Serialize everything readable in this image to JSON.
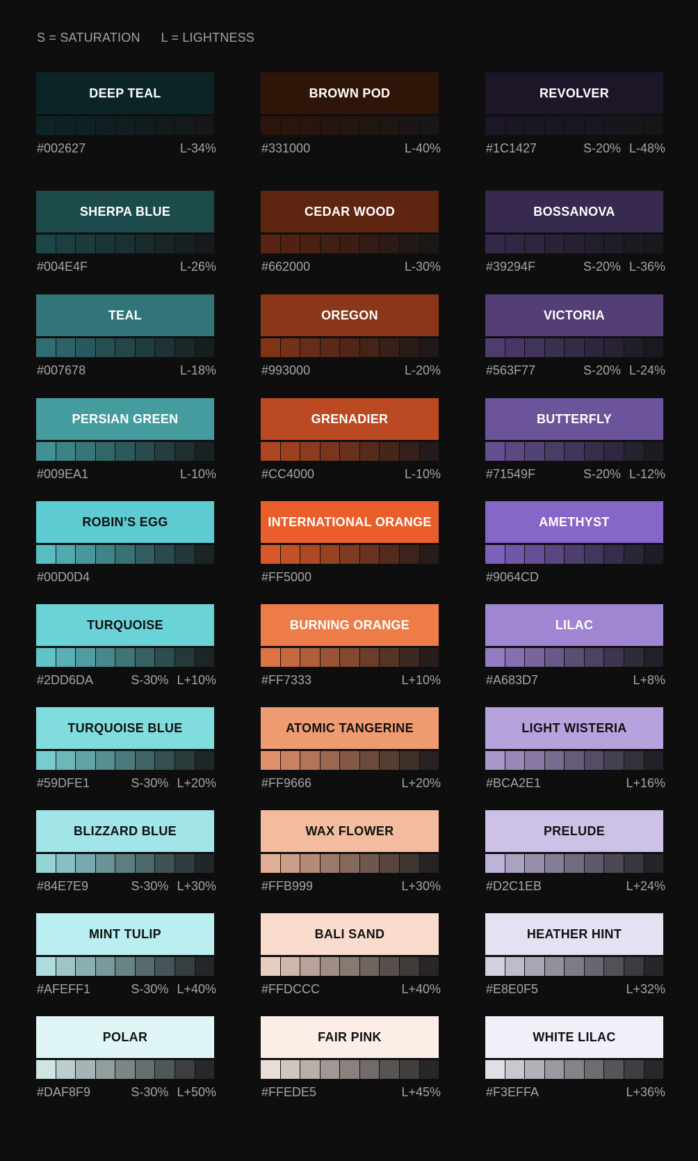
{
  "legend": {
    "saturation": "S = SATURATION",
    "lightness": "L = LIGHTNESS"
  },
  "columns": [
    {
      "swatches": [
        {
          "name": "DEEP TEAL",
          "hex": "#002627",
          "sat": "",
          "light": "L-34%",
          "color": "#0b2527",
          "text_color": "#ffffff"
        },
        {
          "name": "SHERPA BLUE",
          "hex": "#004E4F",
          "sat": "",
          "light": "L-26%",
          "color": "#1d4a4b",
          "text_color": "#ffffff"
        },
        {
          "name": "TEAL",
          "hex": "#007678",
          "sat": "",
          "light": "L-18%",
          "color": "#31757a",
          "text_color": "#ffffff"
        },
        {
          "name": "PERSIAN GREEN",
          "hex": "#009EA1",
          "sat": "",
          "light": "L-10%",
          "color": "#459c9e",
          "text_color": "#ffffff"
        },
        {
          "name": "ROBIN’S EGG",
          "hex": "#00D0D4",
          "sat": "",
          "light": "",
          "color": "#5dcbd1",
          "text_color": "#111111"
        },
        {
          "name": "TURQUOISE",
          "hex": "#2DD6DA",
          "sat": "S-30%",
          "light": "L+10%",
          "color": "#69d3d7",
          "text_color": "#111111"
        },
        {
          "name": "TURQUOISE BLUE",
          "hex": "#59DFE1",
          "sat": "S-30%",
          "light": "L+20%",
          "color": "#81dcdd",
          "text_color": "#111111"
        },
        {
          "name": "BLIZZARD BLUE",
          "hex": "#84E7E9",
          "sat": "S-30%",
          "light": "L+30%",
          "color": "#a1e5e8",
          "text_color": "#111111"
        },
        {
          "name": "MINT TULIP",
          "hex": "#AFEFF1",
          "sat": "S-30%",
          "light": "L+40%",
          "color": "#bbeef0",
          "text_color": "#111111"
        },
        {
          "name": "POLAR",
          "hex": "#DAF8F9",
          "sat": "S-30%",
          "light": "L+50%",
          "color": "#e0f6f6",
          "text_color": "#111111"
        }
      ]
    },
    {
      "swatches": [
        {
          "name": "BROWN POD",
          "hex": "#331000",
          "sat": "",
          "light": "L-40%",
          "color": "#2f1508",
          "text_color": "#ffffff"
        },
        {
          "name": "CEDAR WOOD",
          "hex": "#662000",
          "sat": "",
          "light": "L-30%",
          "color": "#5e2510",
          "text_color": "#ffffff"
        },
        {
          "name": "OREGON",
          "hex": "#993000",
          "sat": "",
          "light": "L-20%",
          "color": "#8a3618",
          "text_color": "#ffffff"
        },
        {
          "name": "GRENADIER",
          "hex": "#CC4000",
          "sat": "",
          "light": "L-10%",
          "color": "#bb4a22",
          "text_color": "#ffffff"
        },
        {
          "name": "INTERNATIONAL ORANGE",
          "hex": "#FF5000",
          "sat": "",
          "light": "",
          "color": "#ea5e2b",
          "text_color": "#ffffff"
        },
        {
          "name": "BURNING ORANGE",
          "hex": "#FF7333",
          "sat": "",
          "light": "L+10%",
          "color": "#ed7c48",
          "text_color": "#ffffff"
        },
        {
          "name": "ATOMIC TANGERINE",
          "hex": "#FF9666",
          "sat": "",
          "light": "L+20%",
          "color": "#f09c73",
          "text_color": "#111111"
        },
        {
          "name": "WAX FLOWER",
          "hex": "#FFB999",
          "sat": "",
          "light": "L+30%",
          "color": "#f3bc9f",
          "text_color": "#111111"
        },
        {
          "name": "BALI SAND",
          "hex": "#FFDCCC",
          "sat": "",
          "light": "L+40%",
          "color": "#f9dccd",
          "text_color": "#111111"
        },
        {
          "name": "FAIR PINK",
          "hex": "#FFEDE5",
          "sat": "",
          "light": "L+45%",
          "color": "#fcede6",
          "text_color": "#111111"
        }
      ]
    },
    {
      "swatches": [
        {
          "name": "REVOLVER",
          "hex": "#1C1427",
          "sat": "S-20%",
          "light": "L-48%",
          "color": "#1c1628",
          "text_color": "#ffffff"
        },
        {
          "name": "BOSSANOVA",
          "hex": "#39294F",
          "sat": "S-20%",
          "light": "L-36%",
          "color": "#372a4e",
          "text_color": "#ffffff"
        },
        {
          "name": "VICTORIA",
          "hex": "#563F77",
          "sat": "S-20%",
          "light": "L-24%",
          "color": "#533f75",
          "text_color": "#ffffff"
        },
        {
          "name": "BUTTERFLY",
          "hex": "#71549F",
          "sat": "S-20%",
          "light": "L-12%",
          "color": "#6c549b",
          "text_color": "#ffffff"
        },
        {
          "name": "AMETHYST",
          "hex": "#9064CD",
          "sat": "",
          "light": "",
          "color": "#8666c7",
          "text_color": "#ffffff"
        },
        {
          "name": "LILAC",
          "hex": "#A683D7",
          "sat": "",
          "light": "L+8%",
          "color": "#9f85d2",
          "text_color": "#ffffff"
        },
        {
          "name": "LIGHT WISTERIA",
          "hex": "#BCA2E1",
          "sat": "",
          "light": "L+16%",
          "color": "#b6a2dc",
          "text_color": "#111111"
        },
        {
          "name": "PRELUDE",
          "hex": "#D2C1EB",
          "sat": "",
          "light": "L+24%",
          "color": "#cdc1e7",
          "text_color": "#111111"
        },
        {
          "name": "HEATHER HINT",
          "hex": "#E8E0F5",
          "sat": "",
          "light": "L+32%",
          "color": "#e5e0f2",
          "text_color": "#111111"
        },
        {
          "name": "WHITE LILAC",
          "hex": "#F3EFFA",
          "sat": "",
          "light": "L+36%",
          "color": "#f2eff9",
          "text_color": "#111111"
        }
      ]
    }
  ]
}
